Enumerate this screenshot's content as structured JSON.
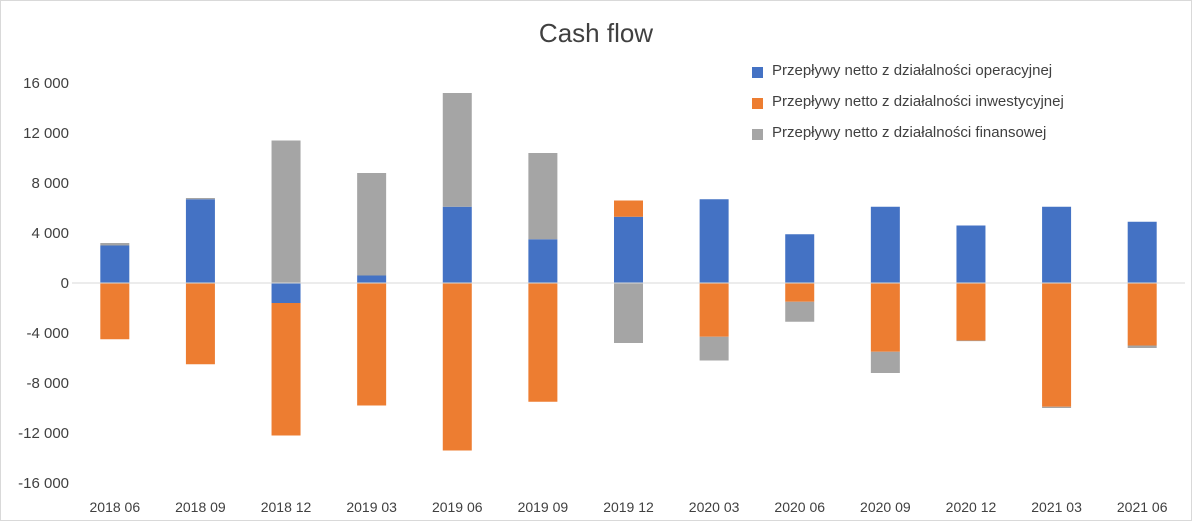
{
  "chart_data": {
    "type": "bar",
    "stacked": true,
    "title": "Cash flow",
    "xlabel": "",
    "ylabel": "",
    "ylim": [
      -16000,
      16000
    ],
    "yticks": [
      16000,
      12000,
      8000,
      4000,
      0,
      -4000,
      -8000,
      -12000,
      -16000
    ],
    "ytick_labels": [
      "16 000",
      "12 000",
      "8 000",
      "4 000",
      "0",
      "-4 000",
      "-8 000",
      "-12 000",
      "-16 000"
    ],
    "categories": [
      "2018 06",
      "2018 09",
      "2018 12",
      "2019 03",
      "2019 06",
      "2019 09",
      "2019 12",
      "2020 03",
      "2020 06",
      "2020 09",
      "2020 12",
      "2021 03",
      "2021 06"
    ],
    "legend_position": "top-right",
    "grid": false,
    "series": [
      {
        "name": "Przepływy netto z działalności operacyjnej",
        "color": "#4472c4",
        "values": [
          3000,
          6700,
          -1600,
          600,
          6100,
          3500,
          5300,
          6700,
          3900,
          6100,
          4600,
          6100,
          4900
        ]
      },
      {
        "name": "Przepływy netto z działalności inwestycyjnej",
        "color": "#ed7d31",
        "values": [
          -4500,
          -6500,
          -10600,
          -9800,
          -13400,
          -9500,
          1300,
          -4300,
          -1500,
          -5500,
          -4600,
          -9900,
          -5000
        ]
      },
      {
        "name": "Przepływy netto z działalności finansowej",
        "color": "#a5a5a5",
        "values": [
          200,
          100,
          11400,
          8200,
          9100,
          6900,
          -4800,
          -1900,
          -1600,
          -1700,
          -50,
          -100,
          -200
        ]
      }
    ]
  }
}
